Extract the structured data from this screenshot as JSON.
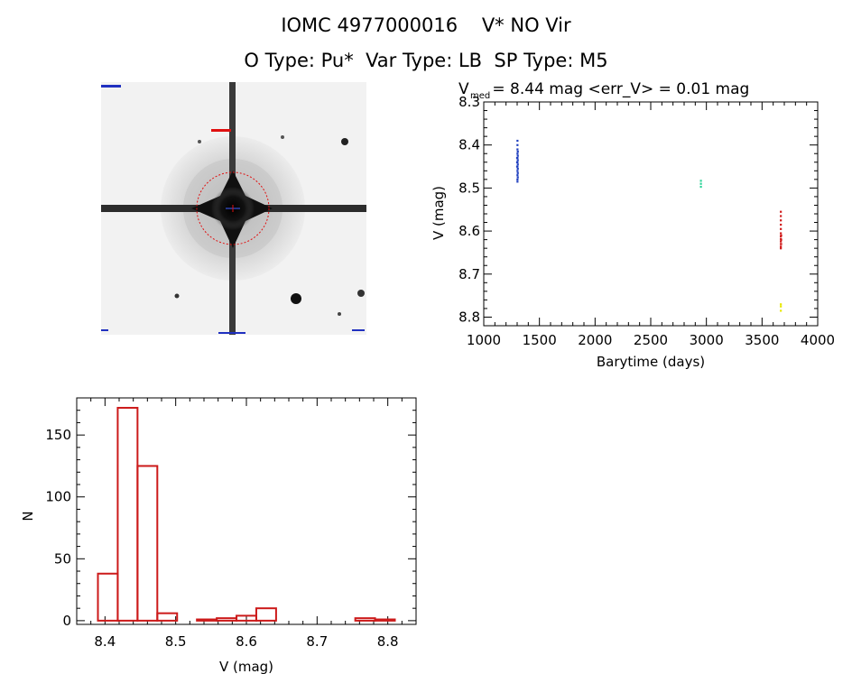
{
  "header": {
    "title_line1": "IOMC 4977000016    V* NO Vir",
    "title_line2": "O Type: Pu*  Var Type: LB  SP Type: M5"
  },
  "colors": {
    "series_blue": "#1f3fbf",
    "series_green": "#2fd49a",
    "series_red": "#d01818",
    "series_yellow": "#e8e800",
    "histogram": "#cc1a1a",
    "finder_circle": "#e01010",
    "finder_cross": "#4060ff"
  },
  "chart_data": [
    {
      "type": "scatter",
      "title_prefix": "V",
      "title_sub": "med",
      "title_rest": " = 8.44 mag <err_V> = 0.01 mag",
      "xlabel": "Barytime (days)",
      "ylabel": "V (mag)",
      "xlim": [
        1000,
        4000
      ],
      "ylim": [
        8.82,
        8.3
      ],
      "xticks": [
        1000,
        1500,
        2000,
        2500,
        3000,
        3500,
        4000
      ],
      "yticks": [
        8.3,
        8.4,
        8.5,
        8.6,
        8.7,
        8.8
      ],
      "series": [
        {
          "color": "#1f3fbf",
          "points": [
            [
              1302,
              8.39
            ],
            [
              1302,
              8.4
            ],
            [
              1302,
              8.41
            ],
            [
              1302,
              8.42
            ],
            [
              1302,
              8.43
            ],
            [
              1302,
              8.44
            ],
            [
              1302,
              8.45
            ],
            [
              1302,
              8.46
            ],
            [
              1302,
              8.47
            ],
            [
              1302,
              8.48
            ],
            [
              1302,
              8.485
            ],
            [
              1305,
              8.415
            ],
            [
              1305,
              8.425
            ],
            [
              1305,
              8.435
            ],
            [
              1305,
              8.445
            ],
            [
              1305,
              8.455
            ],
            [
              1305,
              8.465
            ],
            [
              1305,
              8.475
            ],
            [
              1299,
              8.43
            ],
            [
              1299,
              8.44
            ],
            [
              1299,
              8.45
            ]
          ]
        },
        {
          "color": "#2fd49a",
          "points": [
            [
              2950,
              8.483
            ],
            [
              2950,
              8.49
            ],
            [
              2950,
              8.497
            ]
          ]
        },
        {
          "color": "#d01818",
          "points": [
            [
              3668,
              8.555
            ],
            [
              3668,
              8.565
            ],
            [
              3668,
              8.575
            ],
            [
              3668,
              8.585
            ],
            [
              3668,
              8.595
            ],
            [
              3668,
              8.605
            ],
            [
              3668,
              8.612
            ],
            [
              3668,
              8.618
            ],
            [
              3668,
              8.624
            ],
            [
              3668,
              8.63
            ],
            [
              3668,
              8.636
            ],
            [
              3668,
              8.64
            ],
            [
              3671,
              8.61
            ],
            [
              3671,
              8.62
            ],
            [
              3671,
              8.63
            ]
          ]
        },
        {
          "color": "#e8e800",
          "points": [
            [
              3668,
              8.77
            ],
            [
              3668,
              8.775
            ],
            [
              3668,
              8.785
            ]
          ]
        }
      ]
    },
    {
      "type": "bar",
      "xlabel": "V (mag)",
      "ylabel": "N",
      "xlim": [
        8.36,
        8.84
      ],
      "ylim": [
        -3,
        180
      ],
      "xticks": [
        8.4,
        8.5,
        8.6,
        8.7,
        8.8
      ],
      "yticks": [
        0,
        50,
        100,
        150
      ],
      "bin_edges": [
        8.39,
        8.418,
        8.446,
        8.474,
        8.502,
        8.53,
        8.558,
        8.586,
        8.614,
        8.642,
        8.67,
        8.698,
        8.726,
        8.754,
        8.782,
        8.81
      ],
      "values": [
        38,
        172,
        125,
        6,
        0,
        1,
        2,
        4,
        10,
        0,
        0,
        0,
        0,
        2,
        1
      ]
    }
  ]
}
